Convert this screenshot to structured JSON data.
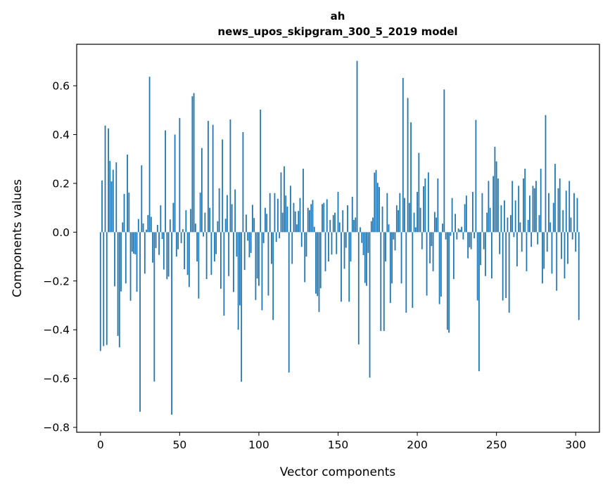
{
  "chart_data": {
    "type": "bar",
    "title": "ah",
    "subtitle": "news_upos_skipgram_300_5_2019 model",
    "xlabel": "Vector components",
    "ylabel": "Components values",
    "xlim": [
      -15,
      315
    ],
    "ylim": [
      -0.82,
      0.77
    ],
    "xticks": [
      0,
      50,
      100,
      150,
      200,
      250,
      300
    ],
    "yticks": [
      -0.8,
      -0.6,
      -0.4,
      -0.2,
      0.0,
      0.2,
      0.4,
      0.6
    ],
    "ytick_labels": [
      "−0.8",
      "−0.6",
      "−0.4",
      "−0.2",
      "0.0",
      "0.2",
      "0.4",
      "0.6"
    ],
    "grid": false,
    "legend": "none",
    "bar_color": "#1f77b4",
    "x": "indices 0..299",
    "values": [
      -0.487,
      0.212,
      -0.467,
      0.437,
      -0.462,
      0.425,
      0.292,
      0.208,
      0.256,
      -0.222,
      0.286,
      -0.425,
      -0.472,
      -0.243,
      0.04,
      0.157,
      -0.21,
      0.318,
      0.162,
      -0.281,
      -0.08,
      -0.088,
      -0.091,
      -0.244,
      0.054,
      -0.736,
      0.274,
      0.036,
      -0.17,
      0.01,
      0.07,
      0.637,
      0.063,
      -0.125,
      -0.612,
      -0.065,
      0.03,
      -0.093,
      0.11,
      -0.028,
      -0.153,
      0.417,
      -0.193,
      -0.182,
      0.052,
      -0.748,
      0.12,
      0.4,
      -0.1,
      -0.07,
      0.468,
      -0.045,
      0.012,
      -0.152,
      0.09,
      -0.175,
      -0.225,
      0.095,
      0.557,
      0.57,
      0.035,
      -0.12,
      -0.272,
      0.162,
      0.345,
      -0.018,
      0.08,
      -0.192,
      0.456,
      0.1,
      -0.175,
      0.44,
      -0.12,
      -0.09,
      0.045,
      0.18,
      -0.232,
      0.38,
      -0.342,
      0.055,
      0.152,
      -0.18,
      0.462,
      0.115,
      -0.245,
      0.175,
      -0.1,
      -0.4,
      -0.3,
      -0.613,
      0.41,
      -0.155,
      0.072,
      -0.035,
      -0.103,
      -0.085,
      0.112,
      0.058,
      -0.278,
      -0.19,
      -0.22,
      0.502,
      -0.32,
      -0.045,
      0.1,
      0.075,
      -0.26,
      0.16,
      -0.13,
      -0.36,
      0.16,
      -0.04,
      0.137,
      -0.025,
      0.245,
      0.08,
      0.27,
      0.15,
      0.105,
      -0.575,
      0.19,
      -0.13,
      0.12,
      0.085,
      0.032,
      0.087,
      0.14,
      -0.06,
      0.26,
      -0.205,
      -0.1,
      0.1,
      0.09,
      0.115,
      0.132,
      0.022,
      -0.252,
      -0.262,
      -0.327,
      -0.23,
      0.115,
      0.12,
      -0.16,
      0.135,
      -0.12,
      0.05,
      -0.092,
      0.07,
      0.08,
      -0.09,
      0.165,
      0.04,
      -0.285,
      0.09,
      -0.15,
      -0.064,
      0.11,
      -0.285,
      -0.12,
      0.145,
      0.05,
      0.06,
      0.702,
      -0.46,
      0.02,
      -0.044,
      -0.094,
      -0.208,
      -0.22,
      -0.085,
      -0.596,
      0.045,
      0.06,
      0.244,
      0.255,
      0.202,
      0.185,
      -0.405,
      0.105,
      -0.405,
      -0.12,
      0.16,
      0.032,
      -0.29,
      -0.21,
      -0.03,
      -0.075,
      0.11,
      0.09,
      0.16,
      -0.21,
      0.632,
      0.14,
      -0.33,
      0.55,
      0.12,
      0.45,
      -0.31,
      0.08,
      0.02,
      0.165,
      0.325,
      0.1,
      -0.07,
      0.188,
      0.22,
      -0.26,
      0.245,
      -0.128,
      -0.057,
      -0.16,
      0.083,
      0.06,
      0.22,
      -0.295,
      -0.264,
      0.035,
      0.585,
      -0.03,
      -0.4,
      -0.412,
      -0.015,
      0.14,
      -0.192,
      0.075,
      -0.03,
      0.015,
      0.01,
      0.022,
      -0.03,
      0.115,
      0.15,
      -0.107,
      -0.062,
      -0.07,
      0.165,
      -0.025,
      0.46,
      -0.28,
      -0.57,
      -0.135,
      0.16,
      -0.07,
      -0.18,
      0.08,
      0.21,
      0.1,
      -0.19,
      0.23,
      0.35,
      0.29,
      0.22,
      -0.09,
      0.11,
      -0.28,
      0.13,
      -0.27,
      0.06,
      -0.33,
      0.07,
      0.21,
      -0.02,
      0.13,
      -0.14,
      0.19,
      0.04,
      -0.08,
      0.22,
      0.26,
      -0.16,
      0.05,
      0.15,
      -0.06,
      0.19,
      0.18,
      0.21,
      -0.05,
      0.07,
      0.26,
      -0.21,
      -0.15,
      0.48,
      -0.08,
      0.16,
      0.04,
      -0.17,
      0.12,
      0.28,
      -0.24,
      0.18,
      0.22,
      -0.11,
      0.09,
      -0.19,
      0.17,
      -0.13,
      0.21,
      0.06,
      -0.03,
      0.16,
      -0.08,
      0.14,
      -0.36
    ]
  }
}
